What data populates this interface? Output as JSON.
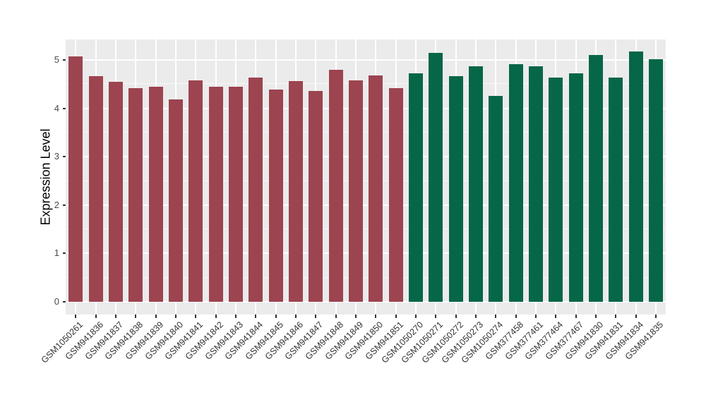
{
  "chart_data": {
    "type": "bar",
    "title": "",
    "xlabel": "",
    "ylabel": "Expression Level",
    "ylim": [
      0,
      5.42
    ],
    "yticks": [
      0,
      1,
      2,
      3,
      4,
      5
    ],
    "grid": "on",
    "legend_position": "none",
    "panel_bg": "#EBEBEB",
    "grid_color": "#FFFFFF",
    "categories": [
      "GSM1050261",
      "GSM941836",
      "GSM941837",
      "GSM941838",
      "GSM941839",
      "GSM941840",
      "GSM941841",
      "GSM941842",
      "GSM941843",
      "GSM941844",
      "GSM941845",
      "GSM941846",
      "GSM941847",
      "GSM941848",
      "GSM941849",
      "GSM941850",
      "GSM941851",
      "GSM1050270",
      "GSM1050271",
      "GSM1050272",
      "GSM1050273",
      "GSM1050274",
      "GSM377458",
      "GSM377461",
      "GSM377464",
      "GSM377467",
      "GSM941830",
      "GSM941831",
      "GSM941834",
      "GSM941835"
    ],
    "values": [
      5.08,
      4.67,
      4.55,
      4.41,
      4.44,
      4.18,
      4.58,
      4.45,
      4.45,
      4.63,
      4.39,
      4.57,
      4.36,
      4.8,
      4.58,
      4.68,
      4.41,
      4.73,
      5.15,
      4.66,
      4.87,
      4.26,
      4.92,
      4.87,
      4.63,
      4.72,
      5.1,
      4.64,
      5.17,
      5.01
    ],
    "groups": [
      "maroon",
      "maroon",
      "maroon",
      "maroon",
      "maroon",
      "maroon",
      "maroon",
      "maroon",
      "maroon",
      "maroon",
      "maroon",
      "maroon",
      "maroon",
      "maroon",
      "maroon",
      "maroon",
      "maroon",
      "green",
      "green",
      "green",
      "green",
      "green",
      "green",
      "green",
      "green",
      "green",
      "green",
      "green",
      "green",
      "green"
    ],
    "group_colors": {
      "maroon": "#9C4450",
      "green": "#066648"
    }
  }
}
